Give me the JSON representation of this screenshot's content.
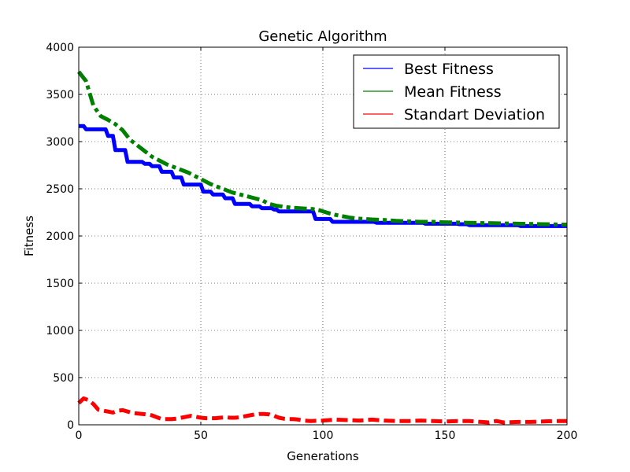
{
  "chart_data": {
    "type": "line",
    "title": "Genetic Algorithm",
    "xlabel": "Generations",
    "ylabel": "Fitness",
    "xlim": [
      0,
      200
    ],
    "ylim": [
      0,
      4000
    ],
    "xticks": [
      0,
      50,
      100,
      150,
      200
    ],
    "yticks": [
      0,
      500,
      1000,
      1500,
      2000,
      2500,
      3000,
      3500,
      4000
    ],
    "grid": true,
    "legend_position": "top-right",
    "series": [
      {
        "name": "Best Fitness",
        "color": "#0000ff",
        "line_style": "solid",
        "legend_line_style": "solid",
        "points": [
          [
            0,
            3165
          ],
          [
            2,
            3165
          ],
          [
            3,
            3130
          ],
          [
            11,
            3130
          ],
          [
            12,
            3060
          ],
          [
            14,
            3060
          ],
          [
            15,
            2910
          ],
          [
            19,
            2910
          ],
          [
            20,
            2785
          ],
          [
            26,
            2785
          ],
          [
            27,
            2765
          ],
          [
            29,
            2765
          ],
          [
            30,
            2740
          ],
          [
            33,
            2740
          ],
          [
            34,
            2680
          ],
          [
            38,
            2680
          ],
          [
            39,
            2620
          ],
          [
            42,
            2620
          ],
          [
            43,
            2545
          ],
          [
            50,
            2545
          ],
          [
            51,
            2470
          ],
          [
            54,
            2470
          ],
          [
            55,
            2440
          ],
          [
            59,
            2440
          ],
          [
            60,
            2400
          ],
          [
            63,
            2400
          ],
          [
            64,
            2340
          ],
          [
            70,
            2340
          ],
          [
            71,
            2315
          ],
          [
            74,
            2315
          ],
          [
            75,
            2295
          ],
          [
            79,
            2295
          ],
          [
            80,
            2280
          ],
          [
            81,
            2280
          ],
          [
            82,
            2260
          ],
          [
            96,
            2260
          ],
          [
            97,
            2180
          ],
          [
            103,
            2180
          ],
          [
            104,
            2150
          ],
          [
            121,
            2150
          ],
          [
            122,
            2140
          ],
          [
            141,
            2140
          ],
          [
            142,
            2130
          ],
          [
            155,
            2130
          ],
          [
            156,
            2125
          ],
          [
            159,
            2125
          ],
          [
            160,
            2115
          ],
          [
            180,
            2115
          ],
          [
            181,
            2105
          ],
          [
            200,
            2105
          ]
        ]
      },
      {
        "name": "Mean Fitness",
        "color": "#008000",
        "line_style": "dashdot",
        "legend_line_style": "solid",
        "points": [
          [
            0,
            3740
          ],
          [
            3,
            3640
          ],
          [
            6,
            3380
          ],
          [
            9,
            3270
          ],
          [
            12,
            3230
          ],
          [
            15,
            3185
          ],
          [
            18,
            3120
          ],
          [
            21,
            3020
          ],
          [
            24,
            2960
          ],
          [
            27,
            2900
          ],
          [
            30,
            2840
          ],
          [
            33,
            2800
          ],
          [
            36,
            2760
          ],
          [
            39,
            2730
          ],
          [
            42,
            2700
          ],
          [
            45,
            2670
          ],
          [
            48,
            2630
          ],
          [
            51,
            2590
          ],
          [
            54,
            2550
          ],
          [
            57,
            2520
          ],
          [
            60,
            2490
          ],
          [
            63,
            2460
          ],
          [
            66,
            2440
          ],
          [
            69,
            2420
          ],
          [
            72,
            2400
          ],
          [
            75,
            2380
          ],
          [
            78,
            2340
          ],
          [
            81,
            2320
          ],
          [
            84,
            2310
          ],
          [
            87,
            2300
          ],
          [
            90,
            2295
          ],
          [
            93,
            2290
          ],
          [
            96,
            2285
          ],
          [
            99,
            2270
          ],
          [
            102,
            2245
          ],
          [
            105,
            2225
          ],
          [
            108,
            2210
          ],
          [
            111,
            2195
          ],
          [
            114,
            2185
          ],
          [
            117,
            2180
          ],
          [
            120,
            2175
          ],
          [
            125,
            2170
          ],
          [
            130,
            2160
          ],
          [
            135,
            2155
          ],
          [
            140,
            2150
          ],
          [
            145,
            2150
          ],
          [
            150,
            2145
          ],
          [
            160,
            2140
          ],
          [
            170,
            2135
          ],
          [
            180,
            2130
          ],
          [
            190,
            2125
          ],
          [
            200,
            2120
          ]
        ]
      },
      {
        "name": "Standart Deviation",
        "color": "#ff0000",
        "line_style": "dashed",
        "legend_line_style": "solid",
        "points": [
          [
            0,
            230
          ],
          [
            2,
            280
          ],
          [
            4,
            260
          ],
          [
            6,
            220
          ],
          [
            8,
            160
          ],
          [
            10,
            150
          ],
          [
            12,
            140
          ],
          [
            14,
            130
          ],
          [
            16,
            150
          ],
          [
            18,
            155
          ],
          [
            20,
            140
          ],
          [
            22,
            125
          ],
          [
            24,
            120
          ],
          [
            26,
            115
          ],
          [
            28,
            110
          ],
          [
            30,
            100
          ],
          [
            32,
            80
          ],
          [
            34,
            60
          ],
          [
            36,
            60
          ],
          [
            38,
            60
          ],
          [
            40,
            65
          ],
          [
            42,
            75
          ],
          [
            44,
            85
          ],
          [
            46,
            95
          ],
          [
            48,
            85
          ],
          [
            50,
            75
          ],
          [
            52,
            70
          ],
          [
            54,
            70
          ],
          [
            56,
            70
          ],
          [
            58,
            75
          ],
          [
            60,
            80
          ],
          [
            62,
            75
          ],
          [
            64,
            75
          ],
          [
            66,
            80
          ],
          [
            68,
            90
          ],
          [
            70,
            100
          ],
          [
            72,
            110
          ],
          [
            74,
            115
          ],
          [
            76,
            115
          ],
          [
            78,
            110
          ],
          [
            80,
            95
          ],
          [
            82,
            75
          ],
          [
            84,
            65
          ],
          [
            86,
            60
          ],
          [
            88,
            60
          ],
          [
            90,
            55
          ],
          [
            92,
            45
          ],
          [
            95,
            40
          ],
          [
            100,
            45
          ],
          [
            105,
            55
          ],
          [
            110,
            50
          ],
          [
            115,
            45
          ],
          [
            120,
            55
          ],
          [
            125,
            45
          ],
          [
            130,
            40
          ],
          [
            135,
            40
          ],
          [
            140,
            45
          ],
          [
            145,
            40
          ],
          [
            150,
            35
          ],
          [
            155,
            40
          ],
          [
            160,
            40
          ],
          [
            165,
            30
          ],
          [
            168,
            25
          ],
          [
            171,
            40
          ],
          [
            174,
            25
          ],
          [
            180,
            30
          ],
          [
            185,
            30
          ],
          [
            190,
            35
          ],
          [
            195,
            40
          ],
          [
            200,
            40
          ]
        ]
      }
    ]
  }
}
